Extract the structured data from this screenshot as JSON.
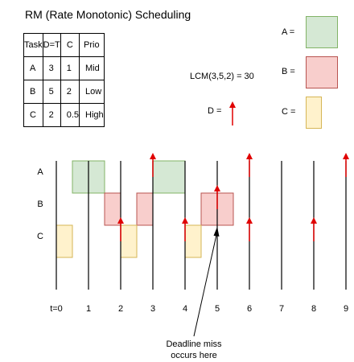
{
  "title": "RM (Rate Monotonic) Scheduling",
  "table": {
    "headers": [
      "Task",
      "D=T",
      "C",
      "Prio"
    ],
    "rows": [
      [
        "A",
        "3",
        "1",
        "Mid"
      ],
      [
        "B",
        "5",
        "2",
        "Low"
      ],
      [
        "C",
        "2",
        "0.5",
        "High"
      ]
    ]
  },
  "lcm_text": "LCM(3,5,2) = 30",
  "deadline_legend_label": "D =",
  "legend": [
    {
      "label": "A =",
      "fill": "#d5e8d4",
      "stroke": "#82b366"
    },
    {
      "label": "B =",
      "fill": "#f8cecc",
      "stroke": "#b85450"
    },
    {
      "label": "C =",
      "fill": "#fff2cc",
      "stroke": "#d6b656"
    }
  ],
  "colors": {
    "arrow": "#e00000",
    "line": "#000000"
  },
  "timeline": {
    "rows": [
      "A",
      "B",
      "C"
    ],
    "ticks": [
      "t=0",
      "1",
      "2",
      "3",
      "4",
      "5",
      "6",
      "7",
      "8",
      "9"
    ],
    "blocks": [
      {
        "task": "A",
        "start": 0.5,
        "end": 1.5
      },
      {
        "task": "A",
        "start": 3,
        "end": 4
      },
      {
        "task": "B",
        "start": 1.5,
        "end": 2
      },
      {
        "task": "B",
        "start": 2.5,
        "end": 3
      },
      {
        "task": "B",
        "start": 4.5,
        "end": 5.5
      },
      {
        "task": "C",
        "start": 0,
        "end": 0.5
      },
      {
        "task": "C",
        "start": 2,
        "end": 2.5
      },
      {
        "task": "C",
        "start": 4,
        "end": 4.5
      }
    ],
    "deadlines": [
      {
        "task": "A",
        "t": 3
      },
      {
        "task": "A",
        "t": 6
      },
      {
        "task": "A",
        "t": 9
      },
      {
        "task": "B",
        "t": 5
      },
      {
        "task": "C",
        "t": 2
      },
      {
        "task": "C",
        "t": 4
      },
      {
        "task": "C",
        "t": 6
      },
      {
        "task": "C",
        "t": 8
      }
    ],
    "annotation": {
      "lines": [
        "Deadline miss",
        "occurs here"
      ],
      "t": 5
    }
  }
}
